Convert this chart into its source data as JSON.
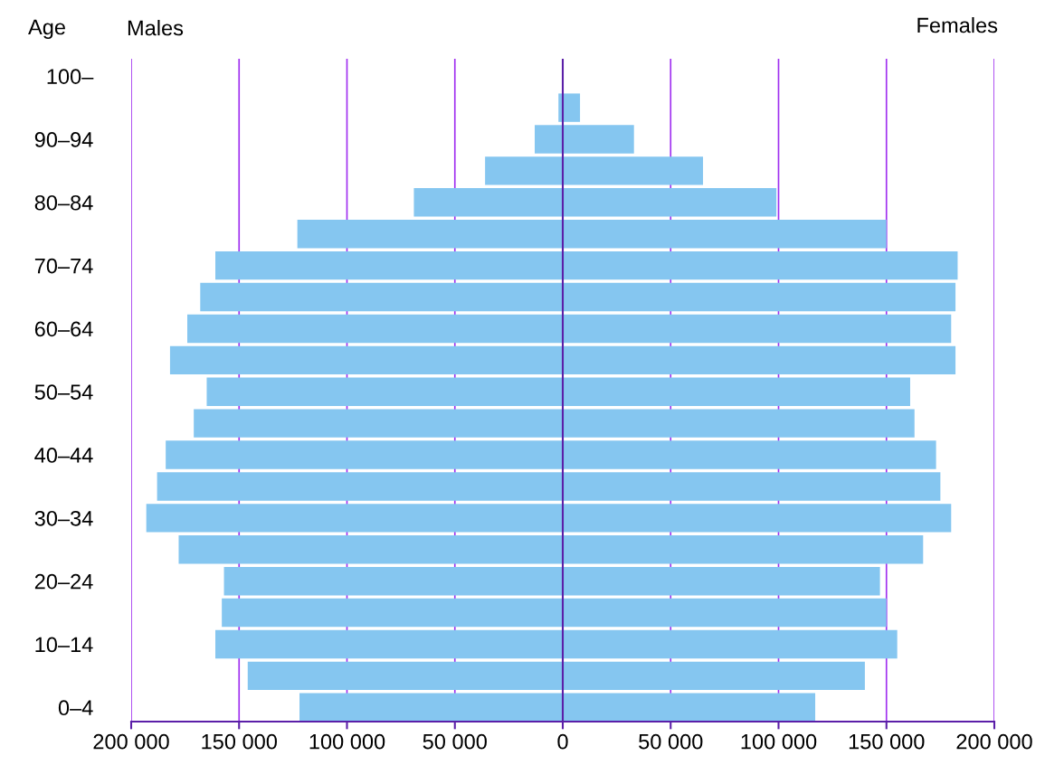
{
  "chart_data": {
    "type": "bar",
    "orientation": "horizontal",
    "ylabel": "Age",
    "stacked": true,
    "categories": [
      "100–",
      null,
      "90–94",
      null,
      "80–84",
      null,
      "70–74",
      null,
      "60–64",
      null,
      "50–54",
      null,
      "40–44",
      null,
      "30–34",
      null,
      "20–24",
      null,
      "10–14",
      null,
      "0–4"
    ],
    "series": [
      {
        "color": "#85c6f0",
        "values": [
          0,
          -2000,
          -13000,
          -36000,
          -69000,
          -123000,
          -161000,
          -168000,
          -174000,
          -182000,
          -165000,
          -171000,
          -184000,
          -188000,
          -193000,
          -178000,
          -157000,
          -158000,
          -161000,
          -146000,
          -122000
        ]
      },
      {
        "color": "#85c6f0",
        "values": [
          0,
          8000,
          33000,
          65000,
          99000,
          150000,
          183000,
          182000,
          180000,
          182000,
          161000,
          163000,
          173000,
          175000,
          180000,
          167000,
          147000,
          150000,
          155000,
          140000,
          117000
        ]
      }
    ],
    "xlim": [
      -200000,
      200000
    ],
    "xticks": [
      {
        "value": -200000,
        "label": "200 000"
      },
      {
        "value": -150000,
        "label": "150 000"
      },
      {
        "value": -100000,
        "label": "100 000"
      },
      {
        "value": -50000,
        "label": "50 000"
      },
      0,
      {
        "value": 50000,
        "label": "50 000"
      },
      {
        "value": 100000,
        "label": "100 000"
      },
      {
        "value": 150000,
        "label": "150 000"
      },
      {
        "value": 200000,
        "label": "200 000"
      }
    ],
    "annotations": [
      "Males",
      "Females"
    ],
    "grid": "x",
    "legend": false,
    "ref_lines": [
      {
        "axis": "x",
        "value": 0,
        "color": "#5b1fa8"
      }
    ]
  }
}
